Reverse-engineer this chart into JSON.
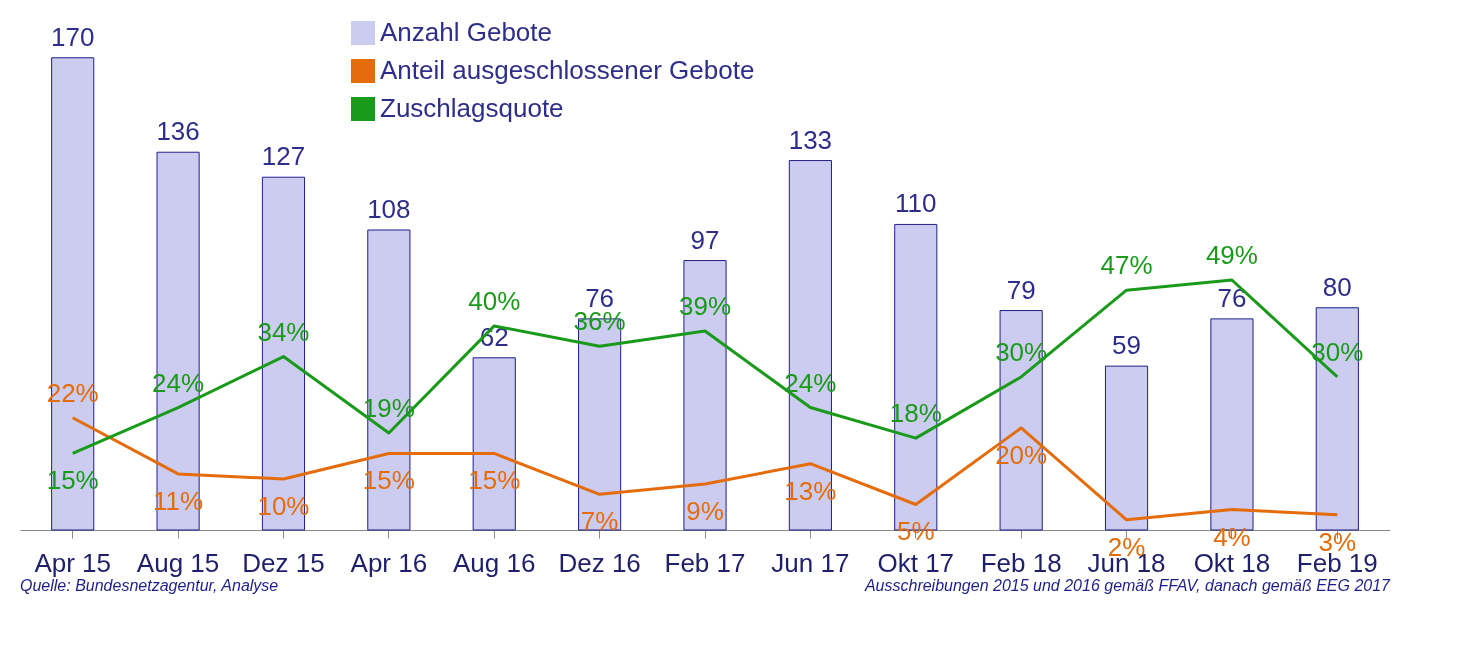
{
  "chart_data": {
    "type": "bar",
    "categories": [
      "Apr 15",
      "Aug 15",
      "Dez 15",
      "Apr 16",
      "Aug 16",
      "Dez 16",
      "Feb 17",
      "Jun 17",
      "Okt 17",
      "Feb 18",
      "Jun 18",
      "Okt 18",
      "Feb 19"
    ],
    "series": [
      {
        "name": "Anzahl Gebote",
        "color": "#ccccf0",
        "values": [
          170,
          136,
          127,
          108,
          62,
          76,
          97,
          133,
          110,
          79,
          59,
          76,
          80
        ]
      },
      {
        "name": "Anteil ausgeschlossener Gebote",
        "type": "line",
        "axis": "y2",
        "color": "#e46c0a",
        "value_labels": [
          "22%",
          "11%",
          "10%",
          "15%",
          "15%",
          "7%",
          "9%",
          "13%",
          "5%",
          "20%",
          "2%",
          "4%",
          "3%"
        ],
        "values": [
          22,
          11,
          10,
          15,
          15,
          7,
          9,
          13,
          5,
          20,
          2,
          4,
          3
        ]
      },
      {
        "name": "Zuschlagsquote",
        "type": "line",
        "axis": "y2",
        "color": "#1a9a1a",
        "value_labels": [
          "15%",
          "24%",
          "34%",
          "19%",
          "40%",
          "36%",
          "39%",
          "24%",
          "18%",
          "30%",
          "47%",
          "49%",
          "30%"
        ],
        "values": [
          15,
          24,
          34,
          19,
          40,
          36,
          39,
          24,
          18,
          30,
          47,
          49,
          30
        ]
      }
    ],
    "data_labels": true,
    "tick_labels": "x",
    "legend": "top",
    "grid": false,
    "annotations": [
      "Quelle: Bundesnetzagentur, Analyse",
      "Ausschreibungen 2015 und 2016 gemäß FFAV, danach gemäß EEG 2017"
    ]
  }
}
